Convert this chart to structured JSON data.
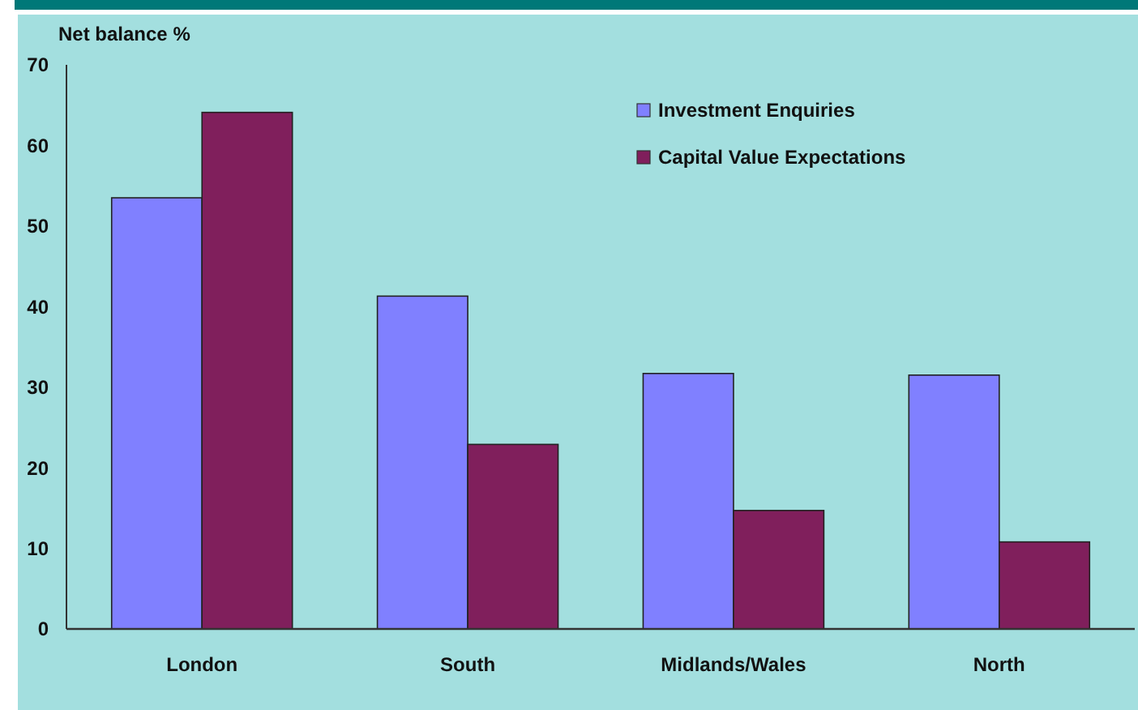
{
  "chart_data": {
    "type": "bar",
    "ylabel": "Net balance %",
    "categories": [
      "London",
      "South",
      "Midlands/Wales",
      "North"
    ],
    "series": [
      {
        "name": "Investment Enquiries",
        "color": "#8080ff",
        "values": [
          53.5,
          41.3,
          31.7,
          31.5
        ]
      },
      {
        "name": "Capital Value Expectations",
        "color": "#801f5c",
        "values": [
          64.1,
          22.9,
          14.7,
          10.8
        ]
      }
    ],
    "ylim": [
      0,
      70
    ],
    "yticks": [
      0,
      10,
      20,
      30,
      40,
      50,
      60,
      70
    ],
    "grid": false,
    "legend": "top right"
  }
}
